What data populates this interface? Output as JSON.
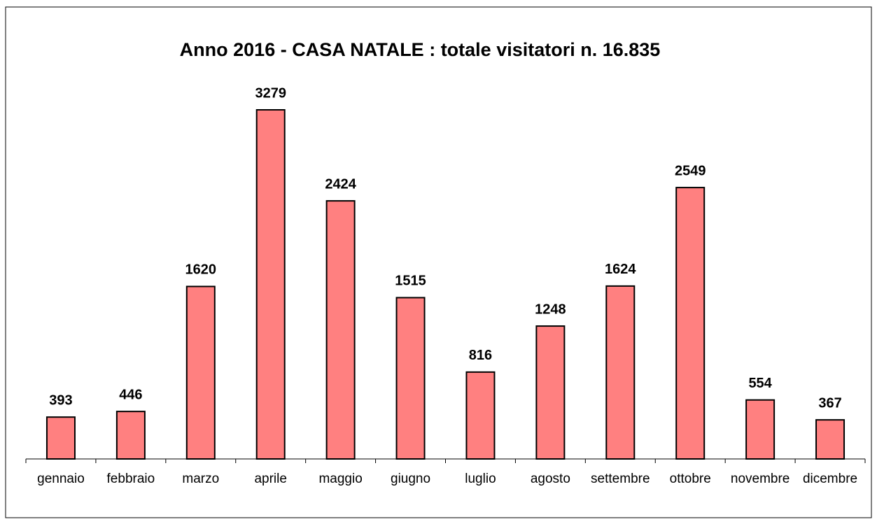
{
  "chart_data": {
    "type": "bar",
    "title": "Anno 2016 - CASA NATALE : totale visitatori n. 16.835",
    "categories": [
      "gennaio",
      "febbraio",
      "marzo",
      "aprile",
      "maggio",
      "giugno",
      "luglio",
      "agosto",
      "settembre",
      "ottobre",
      "novembre",
      "dicembre"
    ],
    "values": [
      393,
      446,
      1620,
      3279,
      2424,
      1515,
      816,
      1248,
      1624,
      2549,
      554,
      367
    ],
    "color": "#ff8080"
  }
}
